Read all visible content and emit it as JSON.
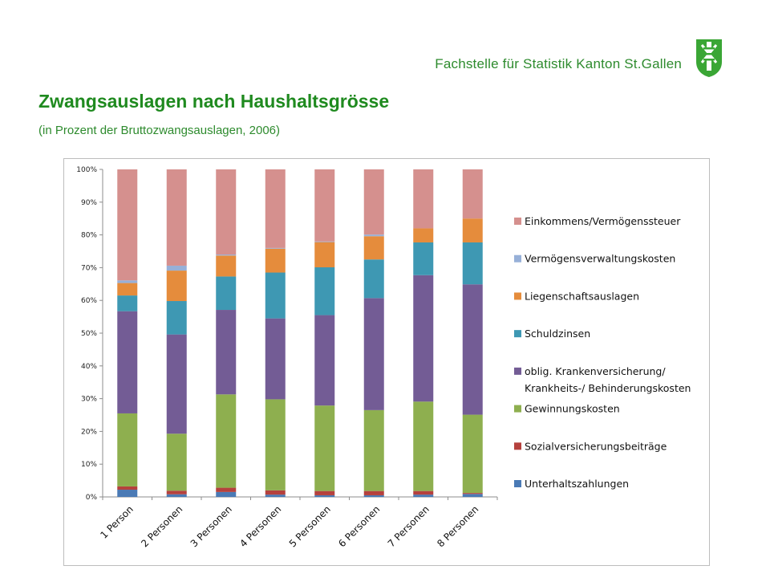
{
  "header": {
    "org": "Fachstelle für Statistik Kanton St.Gallen",
    "title": "Zwangsauslagen nach Haushaltsgrösse",
    "subtitle": "(in Prozent der Bruttozwangsauslagen, 2006)"
  },
  "logo": {
    "icon": "st-gallen-coat-of-arms-icon",
    "color": "#3aa635"
  },
  "chart_data": {
    "type": "bar",
    "stacked": true,
    "percent": true,
    "categories": [
      "1 Person",
      "2 Personen",
      "3 Personen",
      "4 Personen",
      "5 Personen",
      "6 Personen",
      "7 Personen",
      "8 Personen"
    ],
    "ylim": [
      0,
      100
    ],
    "yticks": [
      "0%",
      "10%",
      "20%",
      "30%",
      "40%",
      "50%",
      "60%",
      "70%",
      "80%",
      "90%",
      "100%"
    ],
    "ytick_values": [
      0,
      10,
      20,
      30,
      40,
      50,
      60,
      70,
      80,
      90,
      100
    ],
    "grid": false,
    "legend": "right",
    "series": [
      {
        "name": "Unterhaltszahlungen",
        "color": "#4a7ab5",
        "values": [
          2.2,
          0.8,
          1.5,
          0.7,
          0.5,
          0.5,
          0.7,
          0.9
        ]
      },
      {
        "name": "Sozialversicherungsbeiträge",
        "color": "#b5413d",
        "values": [
          1.0,
          1.1,
          1.3,
          1.3,
          1.3,
          1.3,
          1.1,
          0.3
        ]
      },
      {
        "name": "Gewinnungskosten",
        "color": "#8eaf4f",
        "values": [
          22.3,
          17.4,
          28.5,
          27.8,
          26.1,
          24.7,
          27.3,
          23.9
        ]
      },
      {
        "name": "oblig. Krankenversicherung/\nKrankheits-/ Behinderungskosten",
        "color": "#735c95",
        "values": [
          31.2,
          30.3,
          25.8,
          24.7,
          27.6,
          34.2,
          38.6,
          39.8
        ]
      },
      {
        "name": "Schuldzinsen",
        "color": "#3e98b3",
        "values": [
          4.8,
          10.2,
          10.2,
          14.0,
          14.6,
          11.8,
          10.0,
          12.8
        ]
      },
      {
        "name": "Liegenschaftsauslagen",
        "color": "#e58c3c",
        "values": [
          3.8,
          9.3,
          6.4,
          7.3,
          7.7,
          7.1,
          4.3,
          7.3
        ]
      },
      {
        "name": "Vermögensverwaltungskosten",
        "color": "#97b0d8",
        "values": [
          0.8,
          1.5,
          0.3,
          0.2,
          0.2,
          0.5,
          0.0,
          0.0
        ]
      },
      {
        "name": "Einkommens/Vermögenssteuer",
        "color": "#d5908e",
        "values": [
          33.9,
          29.4,
          26.0,
          24.0,
          22.0,
          19.9,
          18.0,
          15.0
        ]
      }
    ]
  }
}
